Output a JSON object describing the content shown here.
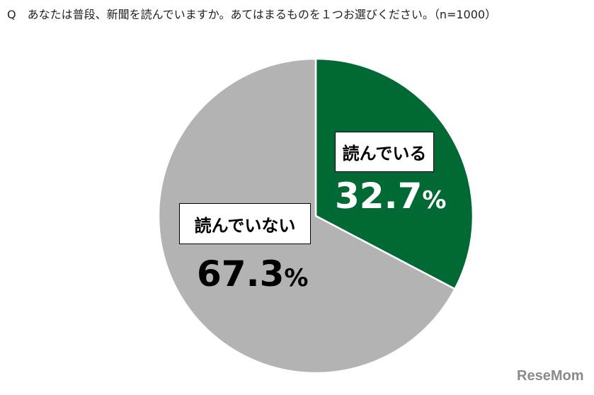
{
  "title": "Q　あなたは普段、新聞を読んでいますか。あてはまるものを１つお選びください。（n=1000）",
  "chart_data": {
    "type": "pie",
    "title": "Q　あなたは普段、新聞を読んでいますか。あてはまるものを１つお選びください。（n=1000）",
    "start_angle": "12 o'clock",
    "direction": "clockwise",
    "slices": [
      {
        "label": "読んでいる",
        "value": 32.7,
        "value_text": "32.7",
        "unit": "%",
        "color": "#006934",
        "text_color": "#ffffff"
      },
      {
        "label": "読んでいない",
        "value": 67.3,
        "value_text": "67.3",
        "unit": "%",
        "color": "#b3b3b3",
        "text_color": "#000000"
      }
    ]
  },
  "watermark": "ReseMom"
}
